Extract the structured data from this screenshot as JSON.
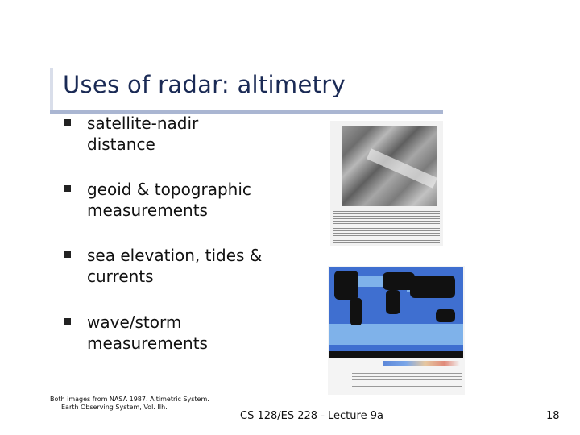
{
  "slide": {
    "title": "Uses of radar: altimetry",
    "bullets": [
      {
        "line1": "satellite-nadir",
        "line2": "distance"
      },
      {
        "line1": "geoid & topographic",
        "line2": "measurements"
      },
      {
        "line1": "sea elevation, tides &",
        "line2": "currents"
      },
      {
        "line1": "wave/storm",
        "line2": "measurements"
      }
    ],
    "source_note": {
      "line1": "Both images from NASA 1987. Altimetric System.",
      "line2": "Earth Observing System, Vol. IIh."
    },
    "footer": "CS 128/ES 228 - Lecture 9a",
    "page_number": "18"
  }
}
